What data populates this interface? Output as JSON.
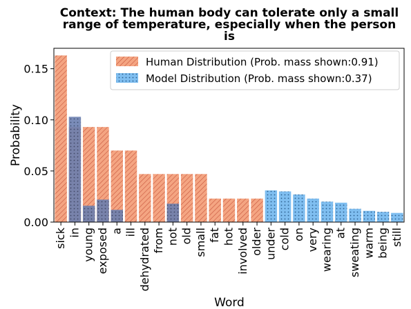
{
  "chart_data": {
    "type": "bar",
    "title_lines": [
      "Context: The human body can tolerate only a small",
      "range of temperature, especially when the person",
      "is"
    ],
    "xlabel": "Word",
    "ylabel": "Probability",
    "ylim": [
      0,
      0.17
    ],
    "yticks": [
      0.0,
      0.05,
      0.1,
      0.15
    ],
    "ytick_labels": [
      "0.00",
      "0.05",
      "0.10",
      "0.15"
    ],
    "categories": [
      "sick",
      "in",
      "young",
      "exposed",
      "a",
      "ill",
      "dehydrated",
      "from",
      "not",
      "old",
      "small",
      "fat",
      "hot",
      "involved",
      "older",
      "under",
      "cold",
      "on",
      "very",
      "wearing",
      "at",
      "sweating",
      "warm",
      "being",
      "still"
    ],
    "series": [
      {
        "name": "Human Distribution (Prob. mass shown:0.91)",
        "color": "#f4a582",
        "pattern": "hatch",
        "values": [
          0.163,
          0.093,
          0.093,
          0.093,
          0.07,
          0.07,
          0.047,
          0.047,
          0.047,
          0.047,
          0.047,
          0.023,
          0.023,
          0.023,
          0.023,
          0,
          0,
          0,
          0,
          0,
          0,
          0,
          0,
          0,
          0
        ]
      },
      {
        "name": "Model Distribution (Prob. mass shown:0.37)",
        "color": "#5aa6e8",
        "pattern": "dots",
        "values": [
          0,
          0.103,
          0.016,
          0.022,
          0.012,
          0,
          0,
          0,
          0.018,
          0,
          0,
          0,
          0,
          0,
          0,
          0.031,
          0.03,
          0.027,
          0.023,
          0.02,
          0.019,
          0.013,
          0.011,
          0.01,
          0.009
        ]
      }
    ],
    "legend_position": "top-right",
    "grid": false
  }
}
